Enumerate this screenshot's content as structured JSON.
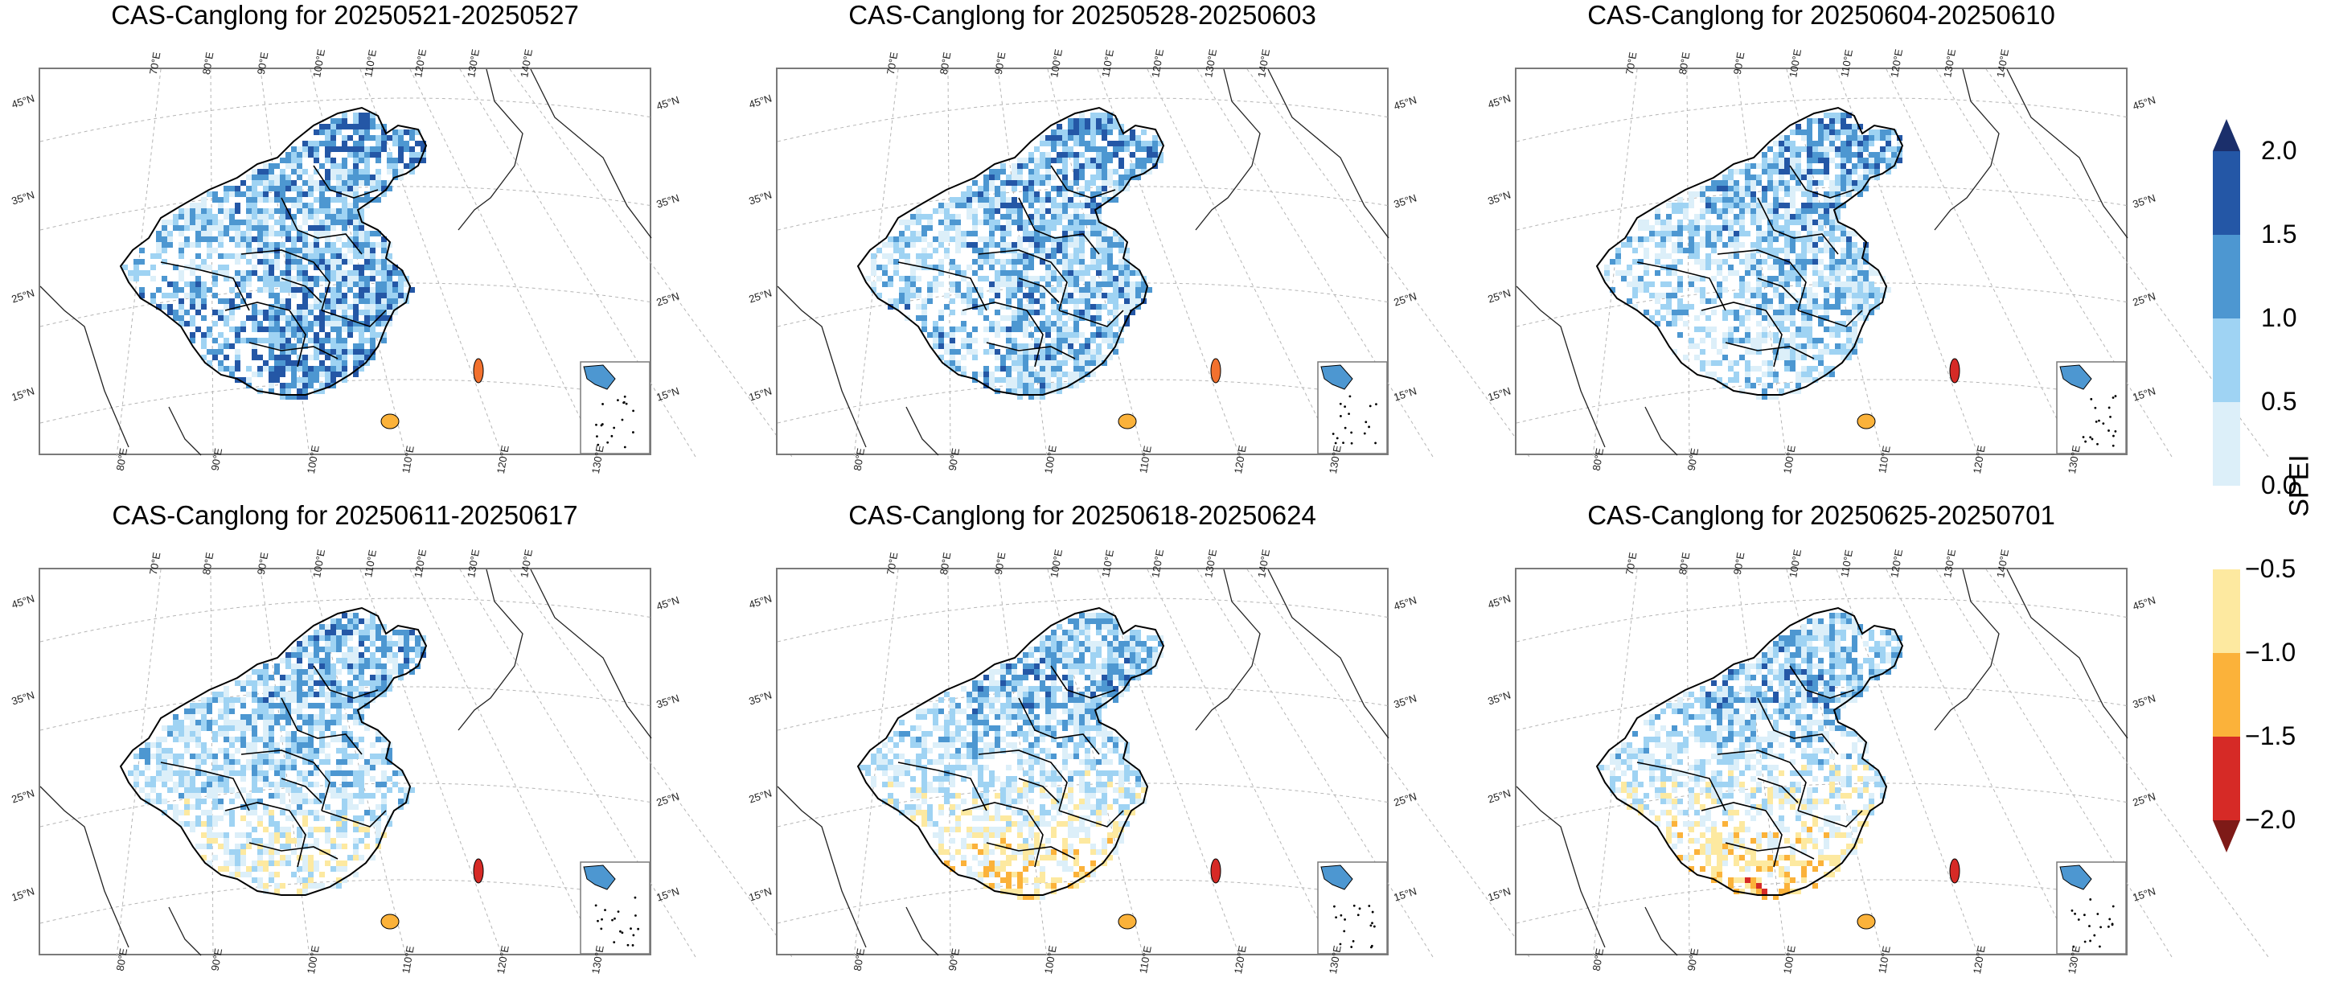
{
  "panels": [
    {
      "title": "CAS-Canglong for 20250521-20250527"
    },
    {
      "title": "CAS-Canglong for 20250528-20250603"
    },
    {
      "title": "CAS-Canglong for 20250604-20250610"
    },
    {
      "title": "CAS-Canglong for 20250611-20250617"
    },
    {
      "title": "CAS-Canglong for 20250618-20250624"
    },
    {
      "title": "CAS-Canglong for 20250625-20250701"
    }
  ],
  "top_lon_ticks": [
    "70°E",
    "80°E",
    "90°E",
    "100°E",
    "110°E",
    "120°E",
    "130°E",
    "140°E"
  ],
  "bottom_lon_ticks": [
    "80°E",
    "90°E",
    "100°E",
    "110°E",
    "120°E",
    "130°E"
  ],
  "lat_ticks": [
    "45°N",
    "35°N",
    "25°N",
    "15°N"
  ],
  "colorbar": {
    "title": "SPEI",
    "tick_labels": [
      "2.0",
      "1.5",
      "1.0",
      "0.5",
      "0.0",
      "−0.5",
      "−1.0",
      "−1.5",
      "−2.0"
    ],
    "bins": [
      {
        "from": 1.5,
        "to": 2.0,
        "color": "#2457a6"
      },
      {
        "from": 1.0,
        "to": 1.5,
        "color": "#4d97d1"
      },
      {
        "from": 0.5,
        "to": 1.0,
        "color": "#9fd3f3"
      },
      {
        "from": 0.0,
        "to": 0.5,
        "color": "#dceff9"
      },
      {
        "from": -0.5,
        "to": 0.0,
        "color": "#ffffff"
      },
      {
        "from": -1.0,
        "to": -0.5,
        "color": "#fde9a0"
      },
      {
        "from": -1.5,
        "to": -1.0,
        "color": "#fbb23a"
      },
      {
        "from": -2.0,
        "to": -1.5,
        "color": "#f2712e"
      }
    ],
    "over_color": "#1b2f6b",
    "under_color": "#7e1a17",
    "lowest_bin_color": "#d62a26"
  }
}
